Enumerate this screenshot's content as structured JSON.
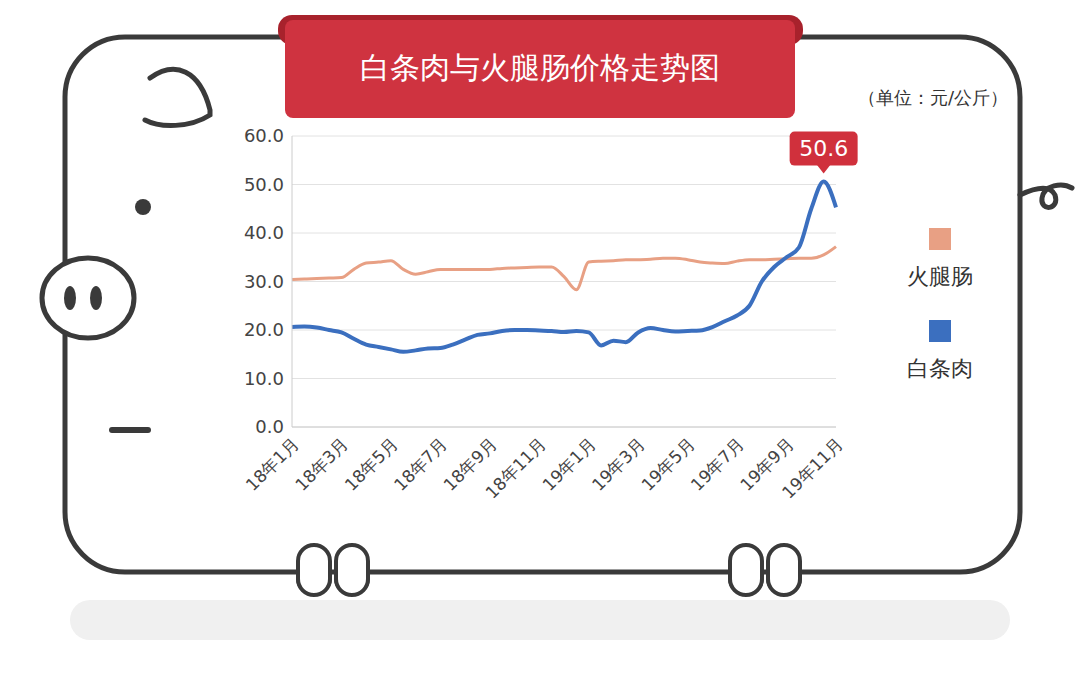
{
  "chart_data": {
    "type": "line",
    "title": "白条肉与火腿肠价格走势图",
    "subtitle": "（单位：元/公斤）",
    "categories": [
      "18年1月",
      null,
      null,
      null,
      "18年3月",
      null,
      null,
      null,
      "18年5月",
      null,
      null,
      null,
      "18年7月",
      null,
      null,
      null,
      "18年9月",
      null,
      null,
      null,
      "18年11月",
      null,
      null,
      null,
      "19年1月",
      null,
      null,
      null,
      "19年3月",
      null,
      null,
      null,
      "19年5月",
      null,
      null,
      null,
      "19年7月",
      null,
      null,
      null,
      "19年9月",
      null,
      null,
      null,
      "19年11月"
    ],
    "series": [
      {
        "name": "火腿肠",
        "color": "#e8a084",
        "values": [
          30.4,
          30.5,
          30.6,
          30.7,
          30.8,
          32.5,
          33.8,
          34.0,
          34.3,
          32.5,
          31.5,
          32.0,
          32.5,
          32.5,
          32.5,
          32.5,
          32.5,
          32.7,
          32.8,
          32.9,
          33.0,
          33.0,
          31.0,
          28.3,
          34.0,
          34.2,
          34.3,
          34.5,
          34.5,
          34.6,
          34.8,
          34.8,
          34.5,
          34.0,
          33.8,
          33.7,
          34.2,
          34.5,
          34.5,
          34.6,
          34.7,
          34.8,
          34.8,
          35.5,
          37.2
        ]
      },
      {
        "name": "白条肉",
        "color": "#3b6fbf",
        "values": [
          20.6,
          20.7,
          20.5,
          20.0,
          19.5,
          18.2,
          17.0,
          16.5,
          16.0,
          15.5,
          15.8,
          16.2,
          16.3,
          17.0,
          18.0,
          19.0,
          19.3,
          19.8,
          20.0,
          20.0,
          19.9,
          19.8,
          19.6,
          19.8,
          19.5,
          16.8,
          17.8,
          17.5,
          19.5,
          20.4,
          20.0,
          19.7,
          19.8,
          19.9,
          20.6,
          21.8,
          23.0,
          25.0,
          30.0,
          33.0,
          35.0,
          37.0,
          45.0,
          50.6,
          45.3
        ]
      }
    ],
    "ylim": [
      0,
      60
    ],
    "yticks": [
      {
        "value": 0,
        "label": "0.0"
      },
      {
        "value": 10,
        "label": "10.0"
      },
      {
        "value": 20,
        "label": "20.0"
      },
      {
        "value": 30,
        "label": "30.0"
      },
      {
        "value": 40,
        "label": "40.0"
      },
      {
        "value": 50,
        "label": "50.0"
      },
      {
        "value": 60,
        "label": "60.0"
      }
    ],
    "grid": true,
    "legend": "right",
    "annotations": [
      {
        "text": "50.6",
        "series": "白条肉",
        "value": 50.6,
        "color": "#d0303c"
      }
    ],
    "title_color": "#cf3340"
  }
}
